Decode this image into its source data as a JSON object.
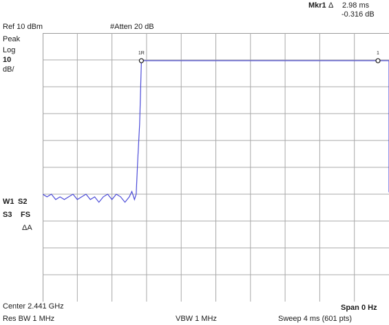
{
  "header": {
    "marker_label": "Mkr1",
    "marker_delta_symbol": "Δ",
    "marker_time": "2.98 ms",
    "marker_level": "-0.316 dB",
    "ref_level": "Ref 10 dBm",
    "attenuation": "#Atten 20 dB"
  },
  "left_panel": {
    "detector": "Peak",
    "scale_type": "Log",
    "scale_value": "10",
    "scale_unit": "dB/",
    "trace_w1": "W1",
    "trace_s2": "S2",
    "trace_s3": "S3",
    "trace_fs": "FS",
    "trace_aa": "ΔA"
  },
  "markers": {
    "ref_marker_label": "1R",
    "delta_marker_label": "1"
  },
  "footer": {
    "center": "Center 2.441 GHz",
    "span": "Span 0 Hz",
    "res_bw": "Res BW 1 MHz",
    "vbw": "VBW 1 MHz",
    "sweep": "Sweep 4 ms (601 pts)"
  },
  "colors": {
    "trace": "#4a4ad8",
    "grid": "#a8a8a8"
  },
  "chart_data": {
    "type": "line",
    "x_unit": "ms",
    "xlim": [
      0,
      4
    ],
    "ylim": [
      -90,
      10
    ],
    "y_unit": "dBm",
    "trace": [
      {
        "x": 0.0,
        "y": -50
      },
      {
        "x": 0.05,
        "y": -51
      },
      {
        "x": 0.1,
        "y": -50
      },
      {
        "x": 0.15,
        "y": -52
      },
      {
        "x": 0.2,
        "y": -51
      },
      {
        "x": 0.25,
        "y": -52
      },
      {
        "x": 0.3,
        "y": -51
      },
      {
        "x": 0.35,
        "y": -50
      },
      {
        "x": 0.4,
        "y": -52
      },
      {
        "x": 0.45,
        "y": -51
      },
      {
        "x": 0.5,
        "y": -50
      },
      {
        "x": 0.55,
        "y": -52
      },
      {
        "x": 0.6,
        "y": -51
      },
      {
        "x": 0.65,
        "y": -53
      },
      {
        "x": 0.7,
        "y": -51
      },
      {
        "x": 0.75,
        "y": -50
      },
      {
        "x": 0.8,
        "y": -52
      },
      {
        "x": 0.85,
        "y": -50
      },
      {
        "x": 0.9,
        "y": -51
      },
      {
        "x": 0.95,
        "y": -53
      },
      {
        "x": 1.0,
        "y": -51
      },
      {
        "x": 1.03,
        "y": -49
      },
      {
        "x": 1.06,
        "y": -52
      },
      {
        "x": 1.08,
        "y": -50
      },
      {
        "x": 1.1,
        "y": -36
      },
      {
        "x": 1.12,
        "y": -24
      },
      {
        "x": 1.14,
        "y": -0.3
      },
      {
        "x": 2.0,
        "y": -0.3
      },
      {
        "x": 3.0,
        "y": -0.3
      },
      {
        "x": 4.0,
        "y": -0.3
      },
      {
        "x": 4.0,
        "y": -49
      },
      {
        "x": 4.02,
        "y": -51
      },
      {
        "x": 4.06,
        "y": -50
      }
    ],
    "ref_marker": {
      "x": 1.14,
      "y": -0.3
    },
    "delta_marker": {
      "x": 4.12,
      "y": -0.3
    }
  }
}
